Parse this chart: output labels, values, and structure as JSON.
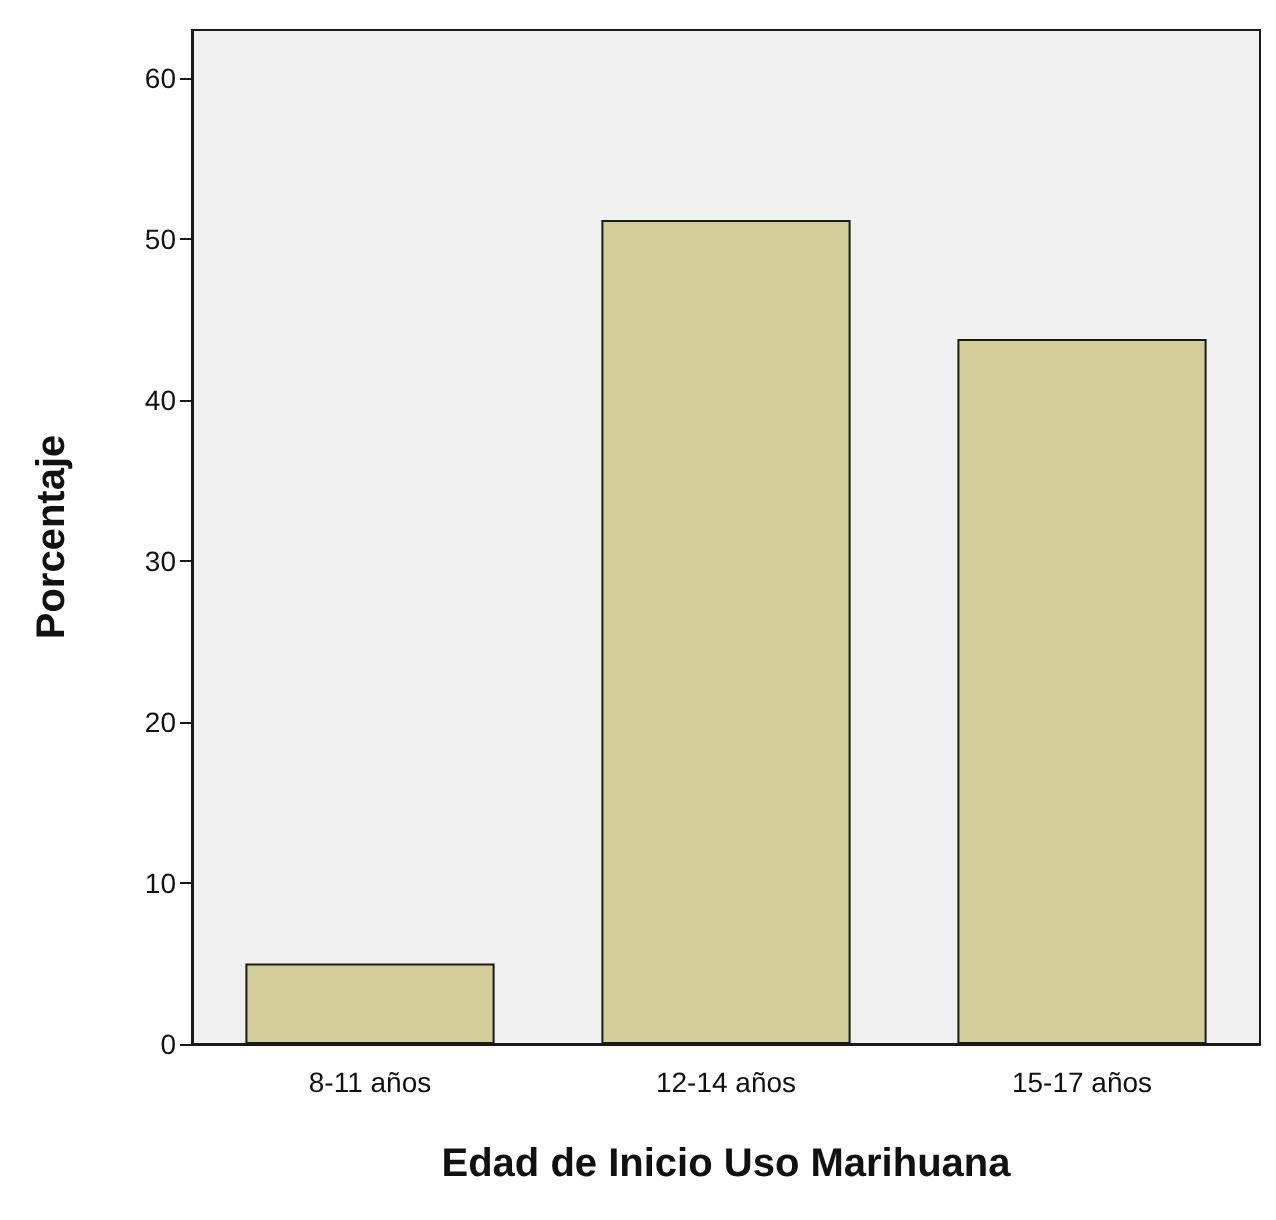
{
  "chart_data": {
    "type": "bar",
    "xlabel": "Edad de Inicio Uso Marihuana",
    "ylabel": "Porcentaje",
    "categories": [
      "8-11 años",
      "12-14 años",
      "15-17 años"
    ],
    "values": [
      5,
      51.2,
      43.8
    ],
    "color": "#d3ce97",
    "ylim": [
      0,
      63
    ],
    "yticks": [
      0,
      10,
      20,
      30,
      40,
      50,
      60
    ],
    "grid": false
  }
}
